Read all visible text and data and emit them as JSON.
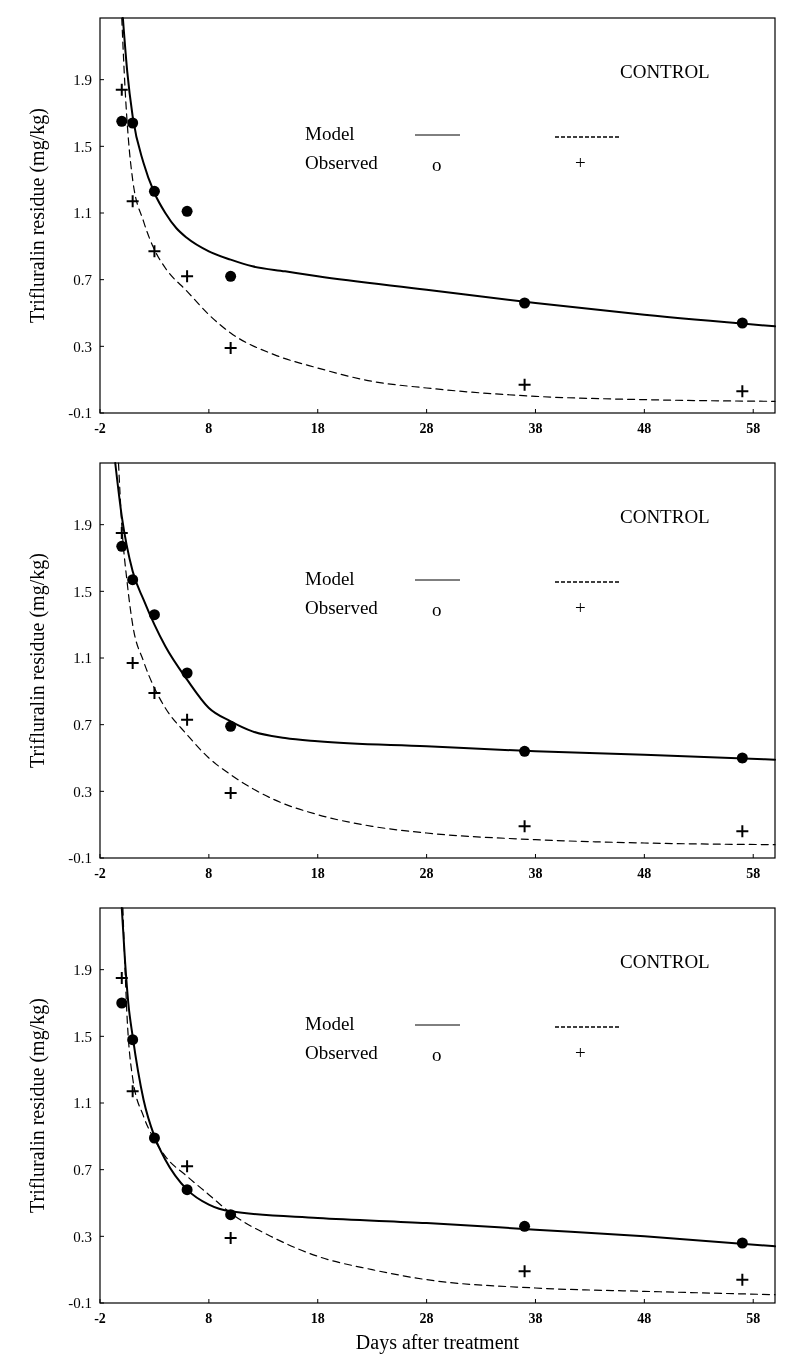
{
  "chart_data": [
    {
      "type": "line",
      "ylabel": "Trifluralin residue (mg/kg)",
      "xlim": [
        -2,
        60
      ],
      "ylim": [
        -0.1,
        2.27
      ],
      "xticks": [
        -2,
        8,
        18,
        28,
        38,
        48,
        58
      ],
      "yticks": [
        -0.1,
        0.3,
        0.7,
        1.1,
        1.5,
        1.9
      ],
      "annotations": [
        "CONTROL",
        "Model",
        "Observed",
        "o",
        "+"
      ],
      "series": [
        {
          "type": "line",
          "color": "#000000",
          "line_style": "solid",
          "marker": "none",
          "x": [
            0.1,
            0.5,
            1,
            2,
            3,
            4,
            5,
            6,
            8,
            10,
            12,
            15,
            18,
            28,
            38,
            48,
            60
          ],
          "values": [
            2.27,
            1.95,
            1.68,
            1.4,
            1.22,
            1.1,
            1.01,
            0.95,
            0.87,
            0.82,
            0.78,
            0.75,
            0.72,
            0.64,
            0.56,
            0.49,
            0.42
          ]
        },
        {
          "type": "line",
          "color": "#000000",
          "line_style": "dashed",
          "marker": "none",
          "x": [
            0,
            0.3,
            0.6,
            1,
            2,
            3,
            4,
            6,
            8,
            10,
            14,
            18,
            23,
            28,
            38,
            48,
            60
          ],
          "values": [
            2.27,
            1.85,
            1.55,
            1.3,
            1.05,
            0.88,
            0.77,
            0.63,
            0.49,
            0.38,
            0.25,
            0.17,
            0.09,
            0.05,
            0.0,
            -0.02,
            -0.03
          ]
        },
        {
          "type": "scatter",
          "color": "#000000",
          "marker": "circle",
          "x": [
            0,
            1,
            3,
            6,
            10,
            37,
            57
          ],
          "values": [
            1.65,
            1.64,
            1.23,
            1.11,
            0.72,
            0.56,
            0.44
          ]
        },
        {
          "type": "scatter",
          "color": "#000000",
          "marker": "cross",
          "x": [
            0,
            1,
            3,
            6,
            10,
            37,
            57
          ],
          "values": [
            1.84,
            1.17,
            0.87,
            0.72,
            0.29,
            0.07,
            0.03
          ]
        }
      ]
    },
    {
      "type": "line",
      "ylabel": "Trifluralin residue (mg/kg)",
      "xlim": [
        -2,
        60
      ],
      "ylim": [
        -0.1,
        2.27
      ],
      "xticks": [
        -2,
        8,
        18,
        28,
        38,
        48,
        58
      ],
      "yticks": [
        -0.1,
        0.3,
        0.7,
        1.1,
        1.5,
        1.9
      ],
      "annotations": [
        "CONTROL",
        "Model",
        "Observed",
        "o",
        "+"
      ],
      "series": [
        {
          "type": "line",
          "color": "#000000",
          "line_style": "solid",
          "marker": "none",
          "x": [
            -0.6,
            0,
            1,
            2,
            3,
            4,
            6,
            8,
            10,
            12,
            15,
            18,
            28,
            38,
            48,
            60
          ],
          "values": [
            2.27,
            1.95,
            1.62,
            1.45,
            1.3,
            1.17,
            0.97,
            0.8,
            0.72,
            0.66,
            0.62,
            0.6,
            0.57,
            0.54,
            0.52,
            0.49
          ]
        },
        {
          "type": "line",
          "color": "#000000",
          "line_style": "dashed",
          "marker": "none",
          "x": [
            -0.3,
            0,
            0.5,
            1,
            2,
            3,
            4,
            6,
            8,
            10,
            14,
            18,
            23,
            28,
            38,
            48,
            60
          ],
          "values": [
            2.27,
            1.9,
            1.55,
            1.3,
            1.08,
            0.92,
            0.8,
            0.64,
            0.5,
            0.4,
            0.25,
            0.16,
            0.09,
            0.05,
            0.01,
            -0.01,
            -0.02
          ]
        },
        {
          "type": "scatter",
          "color": "#000000",
          "marker": "circle",
          "x": [
            0,
            1,
            3,
            6,
            10,
            37,
            57
          ],
          "values": [
            1.77,
            1.57,
            1.36,
            1.01,
            0.69,
            0.54,
            0.5
          ]
        },
        {
          "type": "scatter",
          "color": "#000000",
          "marker": "cross",
          "x": [
            0,
            1,
            3,
            6,
            10,
            37,
            57
          ],
          "values": [
            1.85,
            1.07,
            0.89,
            0.73,
            0.29,
            0.09,
            0.06
          ]
        }
      ]
    },
    {
      "type": "line",
      "xlabel": "Days after treatment",
      "ylabel": "Trifluralin residue (mg/kg)",
      "xlim": [
        -2,
        60
      ],
      "ylim": [
        -0.1,
        2.27
      ],
      "xticks": [
        -2,
        8,
        18,
        28,
        38,
        48,
        58
      ],
      "yticks": [
        -0.1,
        0.3,
        0.7,
        1.1,
        1.5,
        1.9
      ],
      "annotations": [
        "CONTROL",
        "Model",
        "Observed",
        "o",
        "+"
      ],
      "series": [
        {
          "type": "line",
          "color": "#000000",
          "line_style": "solid",
          "marker": "none",
          "x": [
            0,
            0.3,
            0.6,
            1,
            2,
            3,
            4,
            6,
            8,
            10,
            18,
            28,
            38,
            48,
            60
          ],
          "values": [
            2.27,
            1.95,
            1.7,
            1.5,
            1.12,
            0.9,
            0.76,
            0.58,
            0.49,
            0.45,
            0.41,
            0.38,
            0.34,
            0.3,
            0.24
          ]
        },
        {
          "type": "line",
          "color": "#000000",
          "line_style": "dashed",
          "marker": "none",
          "x": [
            0.1,
            0.5,
            1,
            2,
            3,
            4,
            6,
            8,
            10,
            14,
            18,
            23,
            28,
            38,
            48,
            60
          ],
          "values": [
            2.27,
            1.6,
            1.25,
            1.02,
            0.88,
            0.78,
            0.66,
            0.55,
            0.44,
            0.29,
            0.18,
            0.1,
            0.04,
            -0.01,
            -0.03,
            -0.05
          ]
        },
        {
          "type": "scatter",
          "color": "#000000",
          "marker": "circle",
          "x": [
            0,
            1,
            3,
            6,
            10,
            37,
            57
          ],
          "values": [
            1.7,
            1.48,
            0.89,
            0.58,
            0.43,
            0.36,
            0.26
          ]
        },
        {
          "type": "scatter",
          "color": "#000000",
          "marker": "cross",
          "x": [
            0,
            1,
            6,
            10,
            37,
            57
          ],
          "values": [
            1.85,
            1.17,
            0.72,
            0.29,
            0.09,
            0.04
          ]
        }
      ]
    }
  ]
}
